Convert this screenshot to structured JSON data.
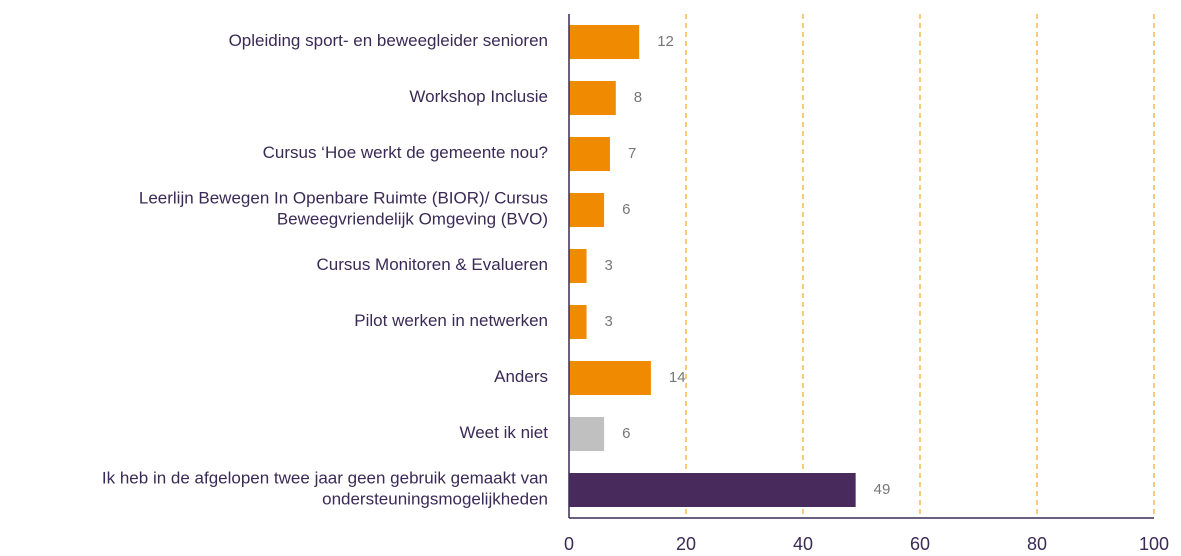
{
  "chart_data": {
    "type": "bar",
    "orientation": "horizontal",
    "categories": [
      [
        "Opleiding sport- en beweegleider senioren"
      ],
      [
        "Workshop Inclusie"
      ],
      [
        "Cursus ‘Hoe werkt de gemeente nou?"
      ],
      [
        "Leerlijn Bewegen In Openbare Ruimte (BIOR)/ Cursus",
        "Beweegvriendelijk Omgeving (BVO)"
      ],
      [
        "Cursus Monitoren & Evalueren"
      ],
      [
        "Pilot werken in netwerken"
      ],
      [
        "Anders"
      ],
      [
        "Weet ik niet"
      ],
      [
        "Ik heb in de afgelopen twee jaar geen gebruik gemaakt van",
        "ondersteuningsmogelijkheden"
      ]
    ],
    "values": [
      12,
      8,
      7,
      6,
      3,
      3,
      14,
      6,
      49
    ],
    "colors": [
      "#f08a00",
      "#f08a00",
      "#f08a00",
      "#f08a00",
      "#f08a00",
      "#f08a00",
      "#f08a00",
      "#c0c0c0",
      "#482a5c"
    ],
    "xlim": [
      0,
      100
    ],
    "xticks": [
      0,
      20,
      40,
      60,
      80,
      100
    ],
    "grid": true
  }
}
